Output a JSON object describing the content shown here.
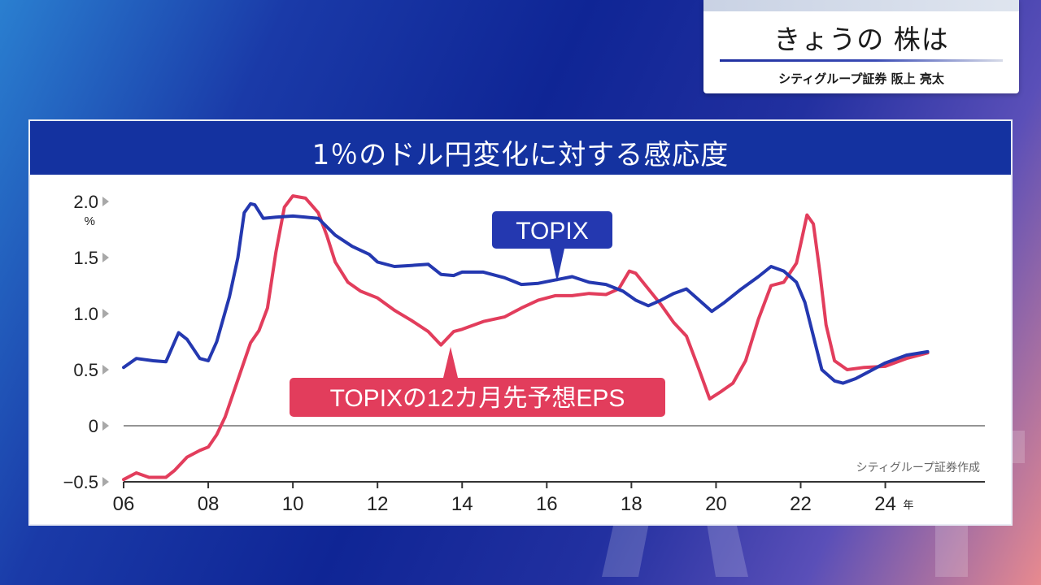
{
  "caption": {
    "title": "きょうの 株は",
    "subtitle": "シティグループ証券 阪上 亮太"
  },
  "chart_data": {
    "type": "line",
    "title": "1％のドル円変化に対する感応度",
    "y_unit_label": "%",
    "x_unit_label": "年",
    "xlim": [
      2006,
      2025.7
    ],
    "ylim": [
      -0.5,
      2.0
    ],
    "x_ticks": [
      {
        "value": 2006,
        "label": "06"
      },
      {
        "value": 2008,
        "label": "08"
      },
      {
        "value": 2010,
        "label": "10"
      },
      {
        "value": 2012,
        "label": "12"
      },
      {
        "value": 2014,
        "label": "14"
      },
      {
        "value": 2016,
        "label": "16"
      },
      {
        "value": 2018,
        "label": "18"
      },
      {
        "value": 2020,
        "label": "20"
      },
      {
        "value": 2022,
        "label": "22"
      },
      {
        "value": 2024,
        "label": "24"
      }
    ],
    "y_ticks": [
      {
        "value": 2.0,
        "label": "2.0"
      },
      {
        "value": 1.5,
        "label": "1.5"
      },
      {
        "value": 1.0,
        "label": "1.0"
      },
      {
        "value": 0.5,
        "label": "0.5"
      },
      {
        "value": 0,
        "label": "0"
      },
      {
        "value": -0.5,
        "label": "−0.5"
      }
    ],
    "source": "シティグループ証券作成",
    "series": [
      {
        "name": "TOPIX",
        "color": "#2438b0",
        "points": [
          [
            2006.0,
            0.52
          ],
          [
            2006.3,
            0.6
          ],
          [
            2006.7,
            0.58
          ],
          [
            2007.0,
            0.57
          ],
          [
            2007.3,
            0.83
          ],
          [
            2007.5,
            0.77
          ],
          [
            2007.8,
            0.6
          ],
          [
            2008.0,
            0.58
          ],
          [
            2008.2,
            0.75
          ],
          [
            2008.5,
            1.15
          ],
          [
            2008.7,
            1.5
          ],
          [
            2008.85,
            1.9
          ],
          [
            2009.0,
            1.98
          ],
          [
            2009.1,
            1.97
          ],
          [
            2009.3,
            1.85
          ],
          [
            2009.6,
            1.86
          ],
          [
            2010.0,
            1.87
          ],
          [
            2010.3,
            1.86
          ],
          [
            2010.6,
            1.85
          ],
          [
            2011.0,
            1.7
          ],
          [
            2011.4,
            1.6
          ],
          [
            2011.8,
            1.53
          ],
          [
            2012.0,
            1.46
          ],
          [
            2012.4,
            1.42
          ],
          [
            2012.8,
            1.43
          ],
          [
            2013.2,
            1.44
          ],
          [
            2013.5,
            1.35
          ],
          [
            2013.8,
            1.34
          ],
          [
            2014.0,
            1.37
          ],
          [
            2014.5,
            1.37
          ],
          [
            2015.0,
            1.32
          ],
          [
            2015.4,
            1.26
          ],
          [
            2015.8,
            1.27
          ],
          [
            2016.2,
            1.3
          ],
          [
            2016.6,
            1.33
          ],
          [
            2017.0,
            1.28
          ],
          [
            2017.4,
            1.26
          ],
          [
            2017.8,
            1.2
          ],
          [
            2018.1,
            1.12
          ],
          [
            2018.4,
            1.07
          ],
          [
            2018.7,
            1.12
          ],
          [
            2019.0,
            1.18
          ],
          [
            2019.3,
            1.22
          ],
          [
            2019.6,
            1.12
          ],
          [
            2019.9,
            1.02
          ],
          [
            2020.2,
            1.1
          ],
          [
            2020.6,
            1.22
          ],
          [
            2021.0,
            1.33
          ],
          [
            2021.3,
            1.42
          ],
          [
            2021.6,
            1.38
          ],
          [
            2021.9,
            1.28
          ],
          [
            2022.1,
            1.1
          ],
          [
            2022.3,
            0.8
          ],
          [
            2022.5,
            0.5
          ],
          [
            2022.8,
            0.4
          ],
          [
            2023.0,
            0.38
          ],
          [
            2023.3,
            0.42
          ],
          [
            2023.6,
            0.48
          ],
          [
            2024.0,
            0.56
          ],
          [
            2024.5,
            0.63
          ],
          [
            2025.0,
            0.66
          ]
        ]
      },
      {
        "name": "TOPIXの12カ月先予想EPS",
        "color": "#e23d5c",
        "points": [
          [
            2006.0,
            -0.48
          ],
          [
            2006.3,
            -0.42
          ],
          [
            2006.6,
            -0.46
          ],
          [
            2007.0,
            -0.46
          ],
          [
            2007.2,
            -0.4
          ],
          [
            2007.5,
            -0.28
          ],
          [
            2007.8,
            -0.22
          ],
          [
            2008.0,
            -0.19
          ],
          [
            2008.2,
            -0.08
          ],
          [
            2008.4,
            0.08
          ],
          [
            2008.6,
            0.3
          ],
          [
            2008.8,
            0.52
          ],
          [
            2009.0,
            0.74
          ],
          [
            2009.2,
            0.85
          ],
          [
            2009.4,
            1.05
          ],
          [
            2009.6,
            1.55
          ],
          [
            2009.8,
            1.95
          ],
          [
            2010.0,
            2.05
          ],
          [
            2010.3,
            2.03
          ],
          [
            2010.6,
            1.9
          ],
          [
            2010.8,
            1.7
          ],
          [
            2011.0,
            1.46
          ],
          [
            2011.3,
            1.28
          ],
          [
            2011.6,
            1.2
          ],
          [
            2012.0,
            1.14
          ],
          [
            2012.4,
            1.03
          ],
          [
            2012.8,
            0.94
          ],
          [
            2013.2,
            0.84
          ],
          [
            2013.5,
            0.72
          ],
          [
            2013.8,
            0.84
          ],
          [
            2014.0,
            0.86
          ],
          [
            2014.5,
            0.93
          ],
          [
            2015.0,
            0.97
          ],
          [
            2015.4,
            1.05
          ],
          [
            2015.8,
            1.12
          ],
          [
            2016.2,
            1.16
          ],
          [
            2016.6,
            1.16
          ],
          [
            2017.0,
            1.18
          ],
          [
            2017.4,
            1.17
          ],
          [
            2017.7,
            1.22
          ],
          [
            2017.95,
            1.38
          ],
          [
            2018.1,
            1.36
          ],
          [
            2018.4,
            1.22
          ],
          [
            2018.7,
            1.08
          ],
          [
            2019.0,
            0.92
          ],
          [
            2019.3,
            0.8
          ],
          [
            2019.6,
            0.5
          ],
          [
            2019.85,
            0.24
          ],
          [
            2020.1,
            0.3
          ],
          [
            2020.4,
            0.38
          ],
          [
            2020.7,
            0.58
          ],
          [
            2021.0,
            0.95
          ],
          [
            2021.3,
            1.25
          ],
          [
            2021.6,
            1.28
          ],
          [
            2021.9,
            1.45
          ],
          [
            2022.0,
            1.62
          ],
          [
            2022.15,
            1.88
          ],
          [
            2022.3,
            1.8
          ],
          [
            2022.45,
            1.38
          ],
          [
            2022.6,
            0.9
          ],
          [
            2022.8,
            0.58
          ],
          [
            2023.1,
            0.5
          ],
          [
            2023.5,
            0.52
          ],
          [
            2024.0,
            0.53
          ],
          [
            2024.5,
            0.6
          ],
          [
            2025.0,
            0.65
          ]
        ]
      }
    ],
    "annotations": [
      {
        "text": "TOPIX",
        "series": 0,
        "color": "#2438b0"
      },
      {
        "text": "TOPIXの12カ月先予想EPS",
        "series": 1,
        "color": "#e23d5c"
      }
    ]
  }
}
